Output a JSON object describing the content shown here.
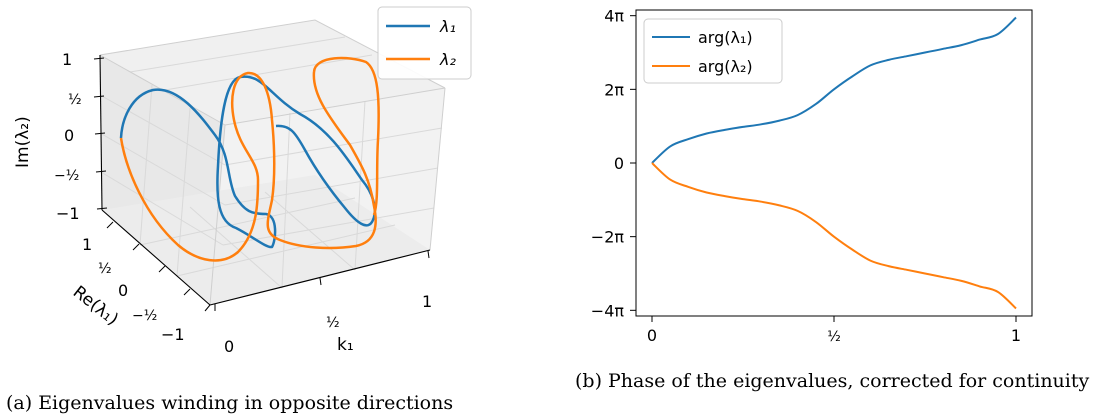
{
  "captions": {
    "left": "(a) Eigenvalues winding in opposite directions",
    "right": "(b) Phase of the eigenvalues, corrected for continuity"
  },
  "colors": {
    "series1": "#1f77b4",
    "series2": "#ff7f0e"
  },
  "chart_data": [
    {
      "type": "line3d",
      "xlabel": "k₁",
      "ylabel": "Re(λ₁)",
      "zlabel": "Im(λ₂)",
      "x_ticks": [
        "0",
        "½",
        "1"
      ],
      "y_ticks": [
        "1",
        "½",
        "0",
        "−½",
        "−1"
      ],
      "z_ticks": [
        "1",
        "½",
        "0",
        "−½",
        "−1"
      ],
      "xlim": [
        0,
        1
      ],
      "ylim": [
        -1,
        1
      ],
      "zlim": [
        -1,
        1
      ],
      "legend": {
        "position": "top-right",
        "entries": [
          "λ₁",
          "λ₂"
        ]
      },
      "grid": true,
      "series": [
        {
          "name": "λ₁",
          "winding": 1
        },
        {
          "name": "λ₂",
          "winding": -1
        }
      ]
    },
    {
      "type": "line",
      "xlim": [
        0,
        1
      ],
      "ylim": [
        -4.1,
        4.1
      ],
      "y_unit": "π",
      "x_ticks": [
        {
          "value": 0,
          "label": "0"
        },
        {
          "value": 0.5,
          "label": "½"
        },
        {
          "value": 1,
          "label": "1"
        }
      ],
      "y_ticks": [
        {
          "value": 4,
          "label": "4π"
        },
        {
          "value": 2,
          "label": "2π"
        },
        {
          "value": 0,
          "label": "0"
        },
        {
          "value": -2,
          "label": "−2π"
        },
        {
          "value": -4,
          "label": "−4π"
        }
      ],
      "legend": {
        "position": "top-left",
        "entries": [
          "arg(λ₁)",
          "arg(λ₂)"
        ]
      },
      "grid": false,
      "x": [
        0,
        0.05,
        0.1,
        0.15,
        0.2,
        0.25,
        0.3,
        0.35,
        0.4,
        0.45,
        0.5,
        0.55,
        0.6,
        0.65,
        0.7,
        0.75,
        0.8,
        0.85,
        0.9,
        0.95,
        1.0
      ],
      "series": [
        {
          "name": "arg(λ₁)",
          "values": [
            0,
            0.45,
            0.65,
            0.8,
            0.9,
            0.98,
            1.05,
            1.15,
            1.3,
            1.6,
            2.0,
            2.35,
            2.65,
            2.8,
            2.9,
            3.0,
            3.1,
            3.2,
            3.35,
            3.5,
            3.95
          ]
        },
        {
          "name": "arg(λ₂)",
          "values": [
            0,
            -0.45,
            -0.65,
            -0.8,
            -0.9,
            -0.98,
            -1.05,
            -1.15,
            -1.3,
            -1.6,
            -2.0,
            -2.35,
            -2.65,
            -2.8,
            -2.9,
            -3.0,
            -3.1,
            -3.2,
            -3.35,
            -3.5,
            -3.95
          ]
        }
      ]
    }
  ]
}
